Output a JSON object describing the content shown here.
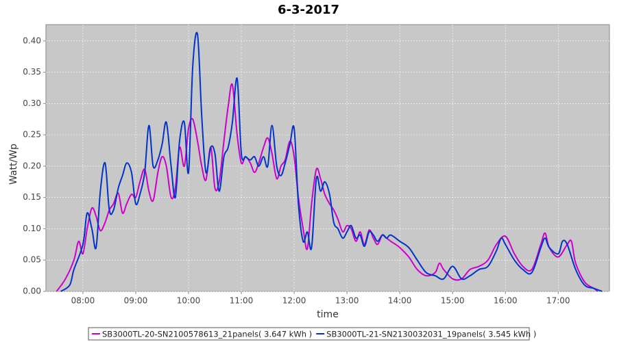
{
  "chart_data": {
    "type": "line",
    "title": "6-3-2017",
    "xlabel": "time",
    "ylabel": "Watt/Wp",
    "xlim": [
      7.3,
      17.97
    ],
    "ylim": [
      0,
      0.426
    ],
    "grid": true,
    "legend": "bottom",
    "xticks": [
      {
        "value": 8,
        "label": "08:00"
      },
      {
        "value": 9,
        "label": "09:00"
      },
      {
        "value": 10,
        "label": "10:00"
      },
      {
        "value": 11,
        "label": "11:00"
      },
      {
        "value": 12,
        "label": "12:00"
      },
      {
        "value": 13,
        "label": "13:00"
      },
      {
        "value": 14,
        "label": "14:00"
      },
      {
        "value": 15,
        "label": "15:00"
      },
      {
        "value": 16,
        "label": "16:00"
      },
      {
        "value": 17,
        "label": "17:00"
      }
    ],
    "yticks": [
      {
        "value": 0,
        "label": "0.00"
      },
      {
        "value": 0.05,
        "label": "0.05"
      },
      {
        "value": 0.1,
        "label": "0.10"
      },
      {
        "value": 0.15,
        "label": "0.15"
      },
      {
        "value": 0.2,
        "label": "0.20"
      },
      {
        "value": 0.25,
        "label": "0.25"
      },
      {
        "value": 0.3,
        "label": "0.30"
      },
      {
        "value": 0.35,
        "label": "0.35"
      },
      {
        "value": 0.4,
        "label": "0.40"
      }
    ],
    "series": [
      {
        "name": "SB3000TL-20-SN2100578613_21panels( 3.647 kWh )",
        "color": "#cc00cc",
        "x": [
          7.5,
          7.67,
          7.83,
          7.92,
          8.0,
          8.08,
          8.17,
          8.25,
          8.33,
          8.42,
          8.5,
          8.58,
          8.67,
          8.75,
          8.83,
          8.92,
          9.0,
          9.08,
          9.17,
          9.25,
          9.33,
          9.42,
          9.5,
          9.58,
          9.67,
          9.75,
          9.83,
          9.92,
          10.0,
          10.08,
          10.17,
          10.25,
          10.33,
          10.42,
          10.5,
          10.58,
          10.67,
          10.75,
          10.83,
          10.92,
          11.0,
          11.08,
          11.17,
          11.25,
          11.33,
          11.42,
          11.5,
          11.58,
          11.67,
          11.75,
          11.83,
          11.92,
          12.0,
          12.08,
          12.17,
          12.25,
          12.33,
          12.42,
          12.5,
          12.58,
          12.67,
          12.75,
          12.83,
          12.92,
          13.0,
          13.08,
          13.17,
          13.25,
          13.33,
          13.42,
          13.5,
          13.58,
          13.67,
          13.75,
          13.83,
          13.92,
          14.0,
          14.17,
          14.33,
          14.5,
          14.67,
          14.75,
          14.83,
          15.0,
          15.17,
          15.33,
          15.5,
          15.67,
          15.83,
          16.0,
          16.17,
          16.33,
          16.5,
          16.67,
          16.75,
          16.83,
          17.0,
          17.17,
          17.25,
          17.33,
          17.5,
          17.67,
          17.75
        ],
        "values": [
          0.0,
          0.02,
          0.05,
          0.08,
          0.06,
          0.1,
          0.133,
          0.12,
          0.097,
          0.11,
          0.13,
          0.14,
          0.157,
          0.125,
          0.14,
          0.155,
          0.15,
          0.175,
          0.195,
          0.16,
          0.145,
          0.19,
          0.215,
          0.2,
          0.15,
          0.165,
          0.23,
          0.2,
          0.26,
          0.275,
          0.24,
          0.2,
          0.178,
          0.23,
          0.165,
          0.175,
          0.24,
          0.295,
          0.33,
          0.25,
          0.205,
          0.215,
          0.205,
          0.19,
          0.205,
          0.23,
          0.245,
          0.22,
          0.18,
          0.2,
          0.21,
          0.24,
          0.215,
          0.15,
          0.1,
          0.068,
          0.14,
          0.195,
          0.18,
          0.155,
          0.14,
          0.13,
          0.115,
          0.095,
          0.105,
          0.1,
          0.08,
          0.095,
          0.075,
          0.098,
          0.085,
          0.075,
          0.09,
          0.085,
          0.08,
          0.075,
          0.07,
          0.055,
          0.035,
          0.025,
          0.03,
          0.045,
          0.035,
          0.02,
          0.02,
          0.035,
          0.04,
          0.05,
          0.075,
          0.088,
          0.06,
          0.04,
          0.035,
          0.075,
          0.093,
          0.07,
          0.055,
          0.075,
          0.08,
          0.045,
          0.015,
          0.005,
          0.0
        ]
      },
      {
        "name": "SB3000TL-21-SN2130032031_19panels( 3.545 kWh )",
        "color": "#0033cc",
        "x": [
          7.58,
          7.75,
          7.83,
          8.0,
          8.08,
          8.17,
          8.25,
          8.33,
          8.42,
          8.5,
          8.58,
          8.67,
          8.75,
          8.83,
          8.92,
          9.0,
          9.08,
          9.17,
          9.25,
          9.33,
          9.42,
          9.5,
          9.58,
          9.67,
          9.75,
          9.83,
          9.92,
          10.0,
          10.08,
          10.17,
          10.25,
          10.33,
          10.42,
          10.5,
          10.58,
          10.67,
          10.75,
          10.83,
          10.92,
          11.0,
          11.08,
          11.17,
          11.25,
          11.33,
          11.42,
          11.5,
          11.58,
          11.67,
          11.75,
          11.83,
          11.92,
          12.0,
          12.08,
          12.17,
          12.25,
          12.33,
          12.42,
          12.5,
          12.58,
          12.67,
          12.75,
          12.83,
          12.92,
          13.0,
          13.08,
          13.17,
          13.25,
          13.33,
          13.42,
          13.5,
          13.58,
          13.67,
          13.75,
          13.83,
          14.0,
          14.17,
          14.33,
          14.5,
          14.67,
          14.83,
          15.0,
          15.17,
          15.33,
          15.5,
          15.67,
          15.83,
          15.92,
          16.0,
          16.17,
          16.33,
          16.5,
          16.67,
          16.75,
          16.83,
          17.0,
          17.08,
          17.17,
          17.33,
          17.5,
          17.67,
          17.83
        ],
        "values": [
          0.0,
          0.01,
          0.035,
          0.075,
          0.125,
          0.1,
          0.07,
          0.16,
          0.205,
          0.13,
          0.13,
          0.165,
          0.185,
          0.205,
          0.19,
          0.14,
          0.155,
          0.19,
          0.265,
          0.2,
          0.21,
          0.235,
          0.27,
          0.2,
          0.15,
          0.24,
          0.27,
          0.19,
          0.36,
          0.41,
          0.28,
          0.19,
          0.23,
          0.22,
          0.16,
          0.215,
          0.23,
          0.27,
          0.34,
          0.22,
          0.215,
          0.21,
          0.215,
          0.2,
          0.215,
          0.2,
          0.265,
          0.2,
          0.185,
          0.205,
          0.235,
          0.26,
          0.14,
          0.08,
          0.095,
          0.07,
          0.18,
          0.16,
          0.175,
          0.155,
          0.11,
          0.1,
          0.085,
          0.095,
          0.105,
          0.085,
          0.09,
          0.072,
          0.095,
          0.09,
          0.08,
          0.09,
          0.085,
          0.09,
          0.08,
          0.07,
          0.05,
          0.03,
          0.025,
          0.02,
          0.04,
          0.02,
          0.025,
          0.035,
          0.04,
          0.065,
          0.085,
          0.075,
          0.05,
          0.035,
          0.03,
          0.07,
          0.085,
          0.07,
          0.06,
          0.08,
          0.075,
          0.035,
          0.01,
          0.005,
          0.0
        ]
      }
    ]
  }
}
